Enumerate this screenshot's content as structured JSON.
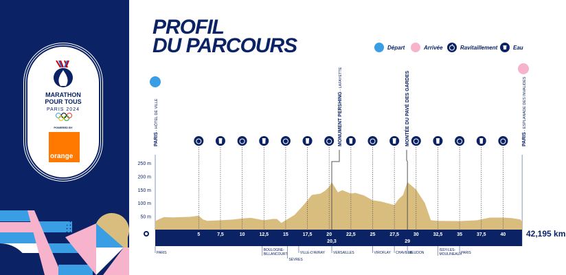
{
  "brand": {
    "line1": "MARATHON",
    "line2": "POUR TOUS",
    "line3": "PARIS 2024",
    "sponsor_label": "POWERED BY",
    "sponsor": "orange"
  },
  "title": {
    "line1": "PROFIL",
    "line2": "DU PARCOURS"
  },
  "legend": [
    {
      "label": "Départ",
      "icon": "start-dot",
      "color": "#3a9ee4"
    },
    {
      "label": "Arrivée",
      "icon": "finish-dot",
      "color": "#f7b3cc"
    },
    {
      "label": "Ravitaillement",
      "icon": "apple-icon",
      "color": "#0b2265"
    },
    {
      "label": "Eau",
      "icon": "cup-icon",
      "color": "#0b2265"
    }
  ],
  "colors": {
    "navy": "#0b2265",
    "profile": "#d9bd7e",
    "start": "#3a9ee4",
    "finish": "#f7b3cc"
  },
  "chart_data": {
    "type": "area",
    "xlabel": "",
    "ylabel": "",
    "xlim": [
      0,
      42.195
    ],
    "ylim": [
      0,
      280
    ],
    "y_ticks": [
      {
        "v": 0,
        "label": "0"
      },
      {
        "v": 50,
        "label": "50 m"
      },
      {
        "v": 100,
        "label": "100 m"
      },
      {
        "v": 150,
        "label": "150 m"
      },
      {
        "v": 200,
        "label": "200 m"
      },
      {
        "v": 250,
        "label": "250 m"
      }
    ],
    "x_ticks": [
      {
        "v": 5,
        "label": "5"
      },
      {
        "v": 7.5,
        "label": "7,5"
      },
      {
        "v": 10,
        "label": "10"
      },
      {
        "v": 12.5,
        "label": "12,5"
      },
      {
        "v": 15,
        "label": "15"
      },
      {
        "v": 17.5,
        "label": "17,5"
      },
      {
        "v": 20,
        "label": "20"
      },
      {
        "v": 22.5,
        "label": "22,5"
      },
      {
        "v": 25,
        "label": "25"
      },
      {
        "v": 27.5,
        "label": "27,5"
      },
      {
        "v": 30,
        "label": "30"
      },
      {
        "v": 32.5,
        "label": "32,5"
      },
      {
        "v": 35,
        "label": "35"
      },
      {
        "v": 37.5,
        "label": "37,5"
      },
      {
        "v": 40,
        "label": "40"
      }
    ],
    "extra_ticks": [
      {
        "v": 20.3,
        "label": "20,3"
      },
      {
        "v": 29,
        "label": "29"
      }
    ],
    "distance_label": "42,195 km",
    "profile": {
      "km": [
        0,
        0.5,
        1,
        2,
        4,
        5,
        5.5,
        6,
        7.5,
        9,
        10,
        11,
        12.5,
        13.5,
        14,
        14.5,
        15,
        16,
        17,
        18,
        19,
        19.5,
        20,
        20.3,
        21,
        21.5,
        22.5,
        23,
        24,
        25,
        26,
        27.5,
        28,
        28.5,
        29,
        30,
        31,
        31.7,
        32.5,
        35,
        37,
        38.5,
        40,
        41,
        42,
        42.195
      ],
      "elevation_m": [
        32,
        40,
        47,
        46,
        48,
        52,
        38,
        33,
        35,
        38,
        42,
        44,
        35,
        40,
        40,
        25,
        35,
        55,
        90,
        130,
        135,
        145,
        160,
        178,
        140,
        148,
        135,
        138,
        128,
        110,
        105,
        92,
        115,
        130,
        178,
        150,
        100,
        35,
        33,
        32,
        35,
        45,
        45,
        43,
        38,
        28
      ]
    },
    "supply_points": [
      {
        "km": 5,
        "type": "ravitaillement"
      },
      {
        "km": 7.5,
        "type": "eau"
      },
      {
        "km": 10,
        "type": "ravitaillement"
      },
      {
        "km": 12.5,
        "type": "eau"
      },
      {
        "km": 15,
        "type": "ravitaillement"
      },
      {
        "km": 17.5,
        "type": "eau"
      },
      {
        "km": 20,
        "type": "ravitaillement"
      },
      {
        "km": 22.5,
        "type": "eau"
      },
      {
        "km": 25,
        "type": "ravitaillement"
      },
      {
        "km": 27.5,
        "type": "eau"
      },
      {
        "km": 30,
        "type": "ravitaillement"
      },
      {
        "km": 32.5,
        "type": "eau"
      },
      {
        "km": 35,
        "type": "ravitaillement"
      },
      {
        "km": 37.5,
        "type": "eau"
      },
      {
        "km": 40,
        "type": "ravitaillement"
      }
    ],
    "landmarks": [
      {
        "km": 0,
        "bold": "PARIS",
        "rest": " - HÔTEL DE VILLE"
      },
      {
        "km": 20.3,
        "bold": "MONUMENT PERSHING",
        "rest": " - LAFAYETTE"
      },
      {
        "km": 29,
        "bold": "MONTÉE DU PAVÉ DES GARDES",
        "rest": ""
      },
      {
        "km": 42.195,
        "bold": "PARIS",
        "rest": " - ESPLANADE DES INVALIDES"
      }
    ],
    "towns": [
      {
        "km": 0,
        "lines": [
          "PARIS"
        ],
        "row": 0
      },
      {
        "km": 12.3,
        "lines": [
          "BOULOGNE-",
          "BILLANCOURT"
        ],
        "row": 0
      },
      {
        "km": 15.2,
        "lines": [
          "SÈVRES"
        ],
        "row": 1
      },
      {
        "km": 16.5,
        "lines": [
          "VILLE-D'AVRAY"
        ],
        "row": 0
      },
      {
        "km": 20.3,
        "lines": [
          "VERSAILLES"
        ],
        "row": 0
      },
      {
        "km": 25,
        "lines": [
          "VIROFLAY"
        ],
        "row": 0
      },
      {
        "km": 27.5,
        "lines": [
          "CHAVILLE"
        ],
        "row": 0
      },
      {
        "km": 29,
        "lines": [
          "MEUDON"
        ],
        "row": 0
      },
      {
        "km": 32.5,
        "lines": [
          "ISSY-LES-",
          "MOULINEAUX"
        ],
        "row": 0
      },
      {
        "km": 35,
        "lines": [
          "PARIS"
        ],
        "row": 0
      }
    ]
  }
}
